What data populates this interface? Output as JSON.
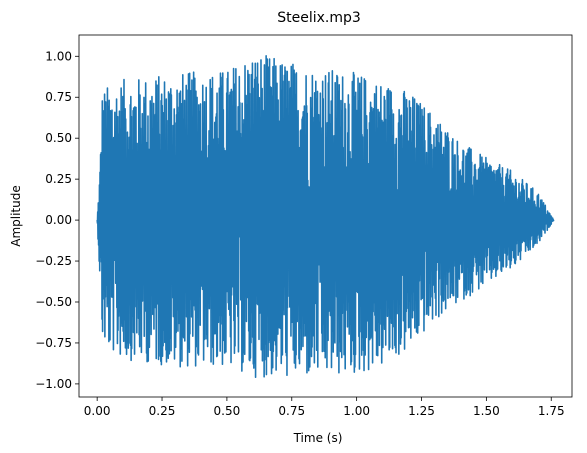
{
  "chart_data": {
    "type": "line",
    "title": "Steelix.mp3",
    "xlabel": "Time (s)",
    "ylabel": "Amplitude",
    "xlim": [
      -0.07,
      1.83
    ],
    "ylim": [
      -1.08,
      1.13
    ],
    "xticks": [
      0.0,
      0.25,
      0.5,
      0.75,
      1.0,
      1.25,
      1.5,
      1.75
    ],
    "xtick_labels": [
      "0.00",
      "0.25",
      "0.50",
      "0.75",
      "1.00",
      "1.25",
      "1.50",
      "1.75"
    ],
    "yticks": [
      -1.0,
      -0.75,
      -0.5,
      -0.25,
      0.0,
      0.25,
      0.5,
      0.75,
      1.0
    ],
    "ytick_labels": [
      "−1.00",
      "−0.75",
      "−0.50",
      "−0.25",
      "0.00",
      "0.25",
      "0.50",
      "0.75",
      "1.00"
    ],
    "grid": false,
    "series": [
      {
        "color": "#1f77b4",
        "duration": 1.76,
        "envelope": {
          "x": [
            0.0,
            0.01,
            0.02,
            0.04,
            0.1,
            0.3,
            0.5,
            0.6,
            0.8,
            1.0,
            1.1,
            1.2,
            1.3,
            1.4,
            1.5,
            1.6,
            1.7,
            1.76
          ],
          "upper": [
            0.0,
            0.3,
            0.8,
            0.82,
            0.86,
            0.9,
            0.92,
            1.03,
            0.95,
            0.9,
            0.85,
            0.79,
            0.65,
            0.48,
            0.38,
            0.3,
            0.17,
            0.0
          ],
          "lower": [
            0.0,
            -0.35,
            -0.75,
            -0.8,
            -0.85,
            -0.9,
            -0.9,
            -0.96,
            -0.97,
            -0.95,
            -0.9,
            -0.8,
            -0.62,
            -0.5,
            -0.4,
            -0.3,
            -0.15,
            0.0
          ]
        }
      }
    ]
  }
}
